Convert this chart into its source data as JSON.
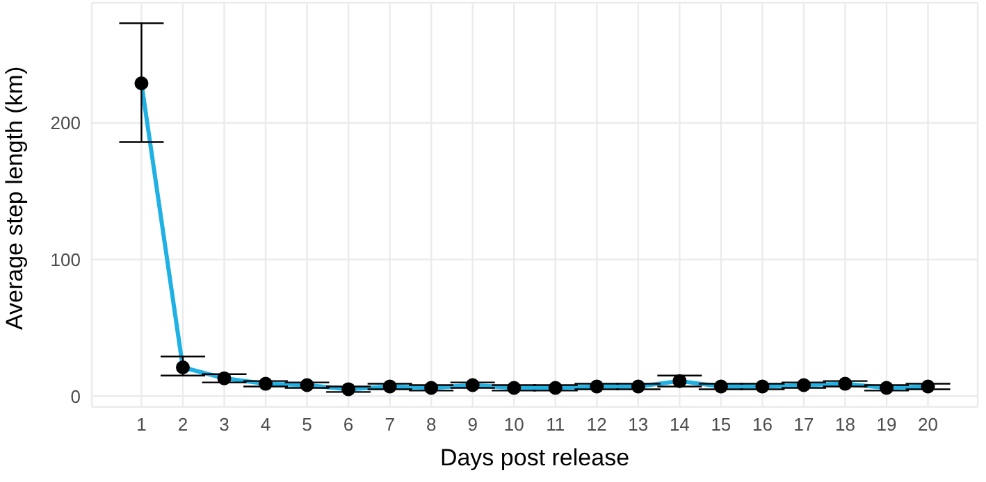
{
  "chart_data": {
    "type": "scatter",
    "xlabel": "Days post release",
    "ylabel": "Average step length (km)",
    "x": [
      1,
      2,
      3,
      4,
      5,
      6,
      7,
      8,
      9,
      10,
      11,
      12,
      13,
      14,
      15,
      16,
      17,
      18,
      19,
      20
    ],
    "series": [
      {
        "type": "line",
        "color": "#1fb1e3",
        "marker": "none",
        "values": [
          229,
          21,
          13,
          9,
          8,
          5,
          7,
          6,
          8,
          6,
          6,
          7,
          7,
          11,
          7,
          7,
          8,
          9,
          6,
          7
        ]
      },
      {
        "color": "#000000",
        "marker": "circle",
        "values": [
          229,
          21,
          13,
          9,
          8,
          5,
          7,
          6,
          8,
          6,
          6,
          7,
          7,
          11,
          7,
          7,
          8,
          9,
          6,
          7
        ],
        "errors": [
          [
            186,
            273
          ],
          [
            15,
            29
          ],
          [
            10,
            16
          ],
          [
            7,
            11
          ],
          [
            6,
            10
          ],
          [
            3,
            7
          ],
          [
            5,
            9
          ],
          [
            4,
            8
          ],
          [
            6,
            10
          ],
          [
            4,
            8
          ],
          [
            4,
            8
          ],
          [
            5,
            9
          ],
          [
            5,
            9
          ],
          [
            7,
            15
          ],
          [
            5,
            9
          ],
          [
            5,
            9
          ],
          [
            6,
            10
          ],
          [
            7,
            11
          ],
          [
            4,
            8
          ],
          [
            5,
            9
          ]
        ]
      }
    ],
    "xlim": [
      -0.2,
      21.2
    ],
    "xticks": [
      1,
      2,
      3,
      4,
      5,
      6,
      7,
      8,
      9,
      10,
      11,
      12,
      13,
      14,
      15,
      16,
      17,
      18,
      19,
      20
    ],
    "ylim": [
      -8,
      288
    ],
    "yticks": [
      0,
      100,
      200
    ],
    "grid": true
  }
}
